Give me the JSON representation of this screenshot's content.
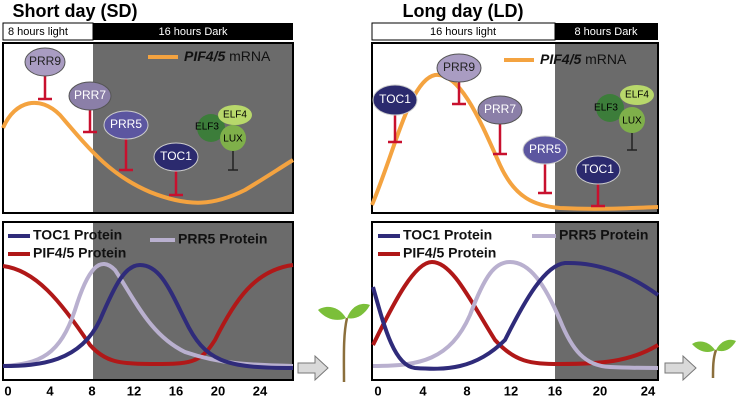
{
  "panels": [
    {
      "title": "Short day (SD)",
      "light_label": "8 hours light",
      "dark_label": "16 hours Dark",
      "mrna_label": {
        "gene": "PIF4/5",
        "suffix": "mRNA"
      },
      "regulators": [
        "PRR9",
        "PRR7",
        "PRR5",
        "TOC1"
      ],
      "evening_complex": [
        "ELF4",
        "ELF3",
        "LUX"
      ],
      "protein_legend": [
        "TOC1 Protein",
        "PRR5 Protein",
        "PIF4/5 Protein"
      ],
      "x_ticks": [
        0,
        4,
        8,
        12,
        16,
        20,
        24
      ]
    },
    {
      "title": "Long day (LD)",
      "light_label": "16 hours light",
      "dark_label": "8 hours Dark",
      "mrna_label": {
        "gene": "PIF4/5",
        "suffix": "mRNA"
      },
      "regulators": [
        "TOC1",
        "PRR9",
        "PRR7",
        "PRR5",
        "TOC1"
      ],
      "evening_complex": [
        "ELF4",
        "ELF3",
        "LUX"
      ],
      "protein_legend": [
        "TOC1 Protein",
        "PRR5 Protein",
        "PIF4/5 Protein"
      ],
      "x_ticks": [
        0,
        4,
        8,
        12,
        16,
        20,
        24
      ]
    }
  ]
}
